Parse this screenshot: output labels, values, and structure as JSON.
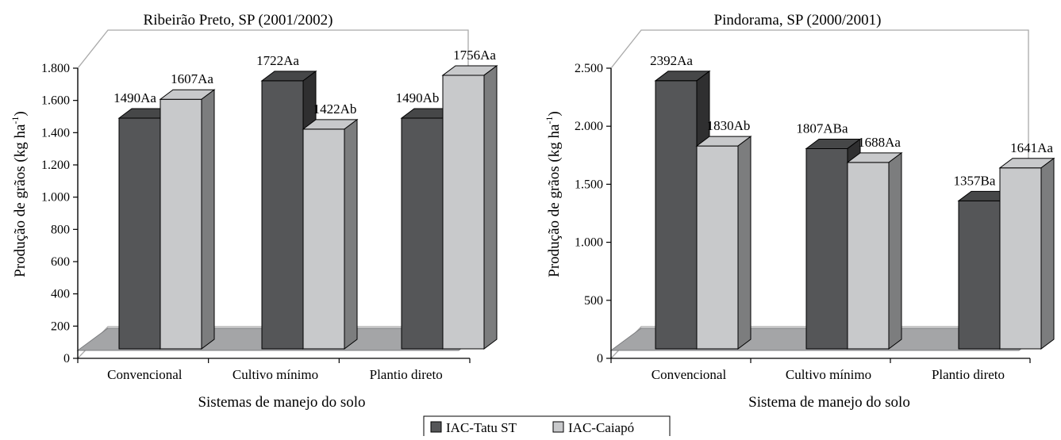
{
  "chart_data": [
    {
      "type": "bar",
      "title": "Ribeirão Preto, SP  (2001/2002)",
      "xlabel": "Sistemas de manejo do solo",
      "ylabel": "Produção de grãos (kg ha⁻¹)",
      "ylim": [
        0,
        1800
      ],
      "yticks": [
        0,
        200,
        400,
        600,
        800,
        1000,
        1200,
        1400,
        1600,
        1800
      ],
      "ytick_labels": [
        "0",
        "200",
        "400",
        "600",
        "800",
        "1.000",
        "1.200",
        "1.400",
        "1.600",
        "1.800"
      ],
      "categories": [
        "Convencional",
        "Cultivo mínimo",
        "Plantio direto"
      ],
      "series": [
        {
          "name": "IAC-Tatu ST",
          "values": [
            1490,
            1722,
            1490
          ],
          "labels": [
            "1490Aa",
            "1722Aa",
            "1490Ab"
          ],
          "color": "#555658"
        },
        {
          "name": "IAC-Caiapó",
          "values": [
            1607,
            1422,
            1756
          ],
          "labels": [
            "1607Aa",
            "1422Ab",
            "1756Aa"
          ],
          "color": "#c8c9cb"
        }
      ]
    },
    {
      "type": "bar",
      "title": "Pindorama, SP (2000/2001)",
      "xlabel": "Sistema de manejo do solo",
      "ylabel": "Produção de grãos (kg ha⁻¹)",
      "ylim": [
        0,
        2500
      ],
      "yticks": [
        0,
        500,
        1000,
        1500,
        2000,
        2500
      ],
      "ytick_labels": [
        "0",
        "500",
        "1.000",
        "1.500",
        "2.000",
        "2.500"
      ],
      "categories": [
        "Convencional",
        "Cultivo mínimo",
        "Plantio direto"
      ],
      "series": [
        {
          "name": "IAC-Tatu ST",
          "values": [
            2392,
            1807,
            1357
          ],
          "labels": [
            "2392Aa",
            "1807ABa",
            "1357Ba"
          ],
          "color": "#555658"
        },
        {
          "name": "IAC-Caiapó",
          "values": [
            1830,
            1688,
            1641
          ],
          "labels": [
            "1830Ab",
            "1688Aa",
            "1641Aa"
          ],
          "color": "#c8c9cb"
        }
      ]
    }
  ],
  "legend": {
    "placement": "bottom-center",
    "items": [
      {
        "label": "IAC-Tatu ST",
        "color": "#555658"
      },
      {
        "label": "IAC-Caiapó",
        "color": "#c8c9cb"
      }
    ]
  }
}
